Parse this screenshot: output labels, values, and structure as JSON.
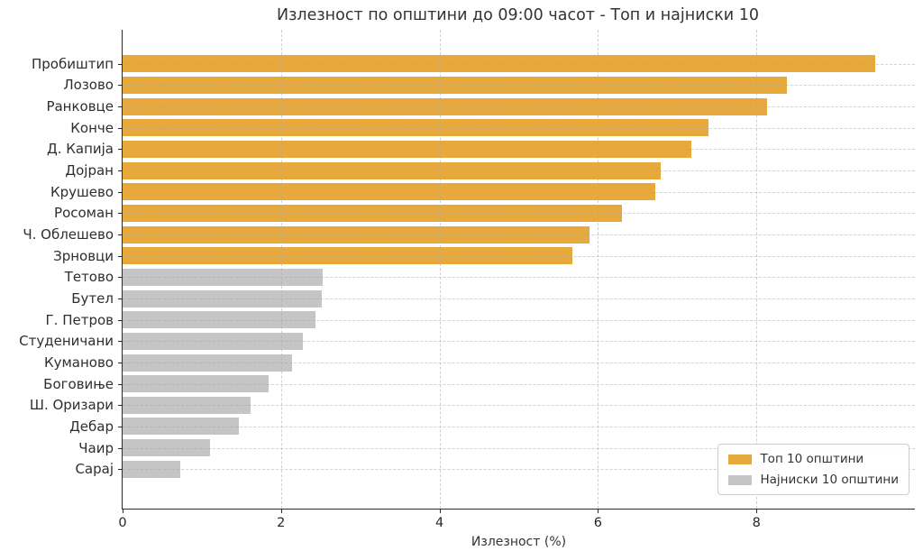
{
  "chart_data": {
    "type": "bar",
    "orientation": "horizontal",
    "title": "Излезност по општини до 09:00 часот - Топ и најниски 10",
    "xlabel": "Излезност (%)",
    "ylabel": "",
    "xlim": [
      0,
      10
    ],
    "xticks": [
      0,
      2,
      4,
      6,
      8
    ],
    "grid": "dashed, both axes",
    "legend_position": "lower-right",
    "colors": {
      "top": "#E8A93C",
      "bottom": "#C5C5C5"
    },
    "legend": {
      "entries": [
        {
          "label": "Топ 10 општини",
          "group": "top",
          "color": "#E8A93C"
        },
        {
          "label": "Најниски 10 општини",
          "group": "bottom",
          "color": "#C5C5C5"
        }
      ]
    },
    "bars": [
      {
        "label": "Пробиштип",
        "value": 9.5,
        "group": "top"
      },
      {
        "label": "Лозово",
        "value": 8.38,
        "group": "top"
      },
      {
        "label": "Ранковце",
        "value": 8.13,
        "group": "top"
      },
      {
        "label": "Конче",
        "value": 7.39,
        "group": "top"
      },
      {
        "label": "Д. Капија",
        "value": 7.18,
        "group": "top"
      },
      {
        "label": "Дојран",
        "value": 6.79,
        "group": "top"
      },
      {
        "label": "Крушево",
        "value": 6.72,
        "group": "top"
      },
      {
        "label": "Росоман",
        "value": 6.3,
        "group": "top"
      },
      {
        "label": "Ч. Облешево",
        "value": 5.89,
        "group": "top"
      },
      {
        "label": "Зрновци",
        "value": 5.68,
        "group": "top"
      },
      {
        "label": "Тетово",
        "value": 2.53,
        "group": "bottom"
      },
      {
        "label": "Бутел",
        "value": 2.51,
        "group": "bottom"
      },
      {
        "label": "Г. Петров",
        "value": 2.43,
        "group": "bottom"
      },
      {
        "label": "Студеничани",
        "value": 2.27,
        "group": "bottom"
      },
      {
        "label": "Куманово",
        "value": 2.14,
        "group": "bottom"
      },
      {
        "label": "Боговиње",
        "value": 1.84,
        "group": "bottom"
      },
      {
        "label": "Ш. Оризари",
        "value": 1.62,
        "group": "bottom"
      },
      {
        "label": "Дебар",
        "value": 1.47,
        "group": "bottom"
      },
      {
        "label": "Чаир",
        "value": 1.1,
        "group": "bottom"
      },
      {
        "label": "Сарај",
        "value": 0.73,
        "group": "bottom"
      }
    ]
  }
}
